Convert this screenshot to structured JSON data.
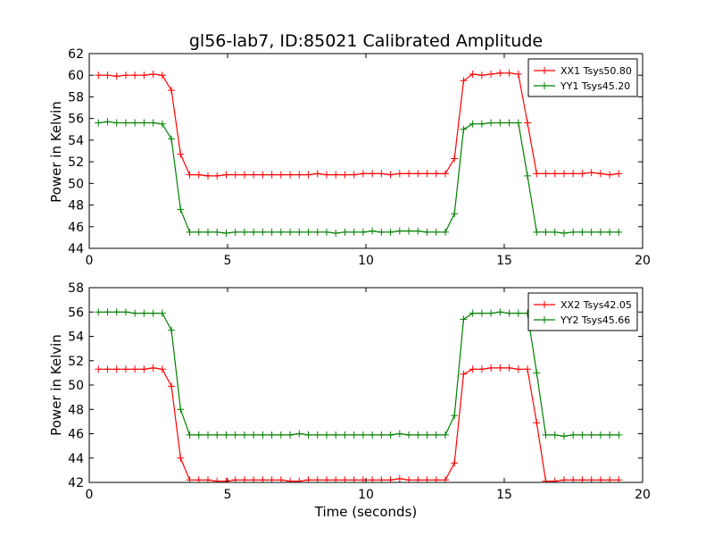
{
  "colors": {
    "background": "#ffffff",
    "xx": "#ff0000",
    "yy": "#008000"
  },
  "chart_data": [
    {
      "type": "line",
      "title": "gl56-lab7, ID:85021 Calibrated Amplitude",
      "xlabel": "",
      "ylabel": "Power in Kelvin",
      "xlim": [
        0,
        20
      ],
      "ylim": [
        44,
        62
      ],
      "xticks": [
        0,
        5,
        10,
        15,
        20
      ],
      "yticks": [
        44,
        46,
        48,
        50,
        52,
        54,
        56,
        58,
        60,
        62
      ],
      "legend": "top-right",
      "series": [
        {
          "name": "XX1 Tsys50.80",
          "color": "#ff0000",
          "x": [
            0.33,
            0.66,
            0.99,
            1.32,
            1.65,
            1.98,
            2.31,
            2.64,
            2.97,
            3.3,
            3.63,
            3.96,
            4.29,
            4.62,
            4.95,
            5.28,
            5.61,
            5.94,
            6.27,
            6.6,
            6.93,
            7.26,
            7.59,
            7.92,
            8.25,
            8.58,
            8.91,
            9.24,
            9.57,
            9.9,
            10.23,
            10.56,
            10.89,
            11.22,
            11.55,
            11.88,
            12.21,
            12.54,
            12.87,
            13.2,
            13.53,
            13.86,
            14.19,
            14.52,
            14.85,
            15.18,
            15.51,
            15.84,
            16.17,
            16.5,
            16.83,
            17.16,
            17.49,
            17.82,
            18.15,
            18.48,
            18.81,
            19.14
          ],
          "y": [
            60.0,
            60.0,
            59.9,
            60.0,
            60.0,
            60.0,
            60.1,
            60.0,
            58.6,
            52.7,
            50.8,
            50.8,
            50.7,
            50.7,
            50.8,
            50.8,
            50.8,
            50.8,
            50.8,
            50.8,
            50.8,
            50.8,
            50.8,
            50.8,
            50.9,
            50.8,
            50.8,
            50.8,
            50.8,
            50.9,
            50.9,
            50.9,
            50.8,
            50.9,
            50.9,
            50.9,
            50.9,
            50.9,
            50.9,
            52.3,
            59.5,
            60.1,
            60.0,
            60.1,
            60.2,
            60.2,
            60.1,
            55.6,
            50.9,
            50.9,
            50.9,
            50.9,
            50.9,
            50.9,
            51.0,
            50.9,
            50.8,
            50.9
          ]
        },
        {
          "name": "YY1 Tsys45.20",
          "color": "#008000",
          "x": [
            0.33,
            0.66,
            0.99,
            1.32,
            1.65,
            1.98,
            2.31,
            2.64,
            2.97,
            3.3,
            3.63,
            3.96,
            4.29,
            4.62,
            4.95,
            5.28,
            5.61,
            5.94,
            6.27,
            6.6,
            6.93,
            7.26,
            7.59,
            7.92,
            8.25,
            8.58,
            8.91,
            9.24,
            9.57,
            9.9,
            10.23,
            10.56,
            10.89,
            11.22,
            11.55,
            11.88,
            12.21,
            12.54,
            12.87,
            13.2,
            13.53,
            13.86,
            14.19,
            14.52,
            14.85,
            15.18,
            15.51,
            15.84,
            16.17,
            16.5,
            16.83,
            17.16,
            17.49,
            17.82,
            18.15,
            18.48,
            18.81,
            19.14
          ],
          "y": [
            55.6,
            55.7,
            55.6,
            55.6,
            55.6,
            55.6,
            55.6,
            55.5,
            54.1,
            47.6,
            45.5,
            45.5,
            45.5,
            45.5,
            45.4,
            45.5,
            45.5,
            45.5,
            45.5,
            45.5,
            45.5,
            45.5,
            45.5,
            45.5,
            45.5,
            45.5,
            45.4,
            45.5,
            45.5,
            45.5,
            45.6,
            45.5,
            45.5,
            45.6,
            45.6,
            45.6,
            45.5,
            45.5,
            45.5,
            47.2,
            55.0,
            55.5,
            55.5,
            55.6,
            55.6,
            55.6,
            55.6,
            50.7,
            45.5,
            45.5,
            45.5,
            45.4,
            45.5,
            45.5,
            45.5,
            45.5,
            45.5,
            45.5
          ]
        }
      ]
    },
    {
      "type": "line",
      "title": "",
      "xlabel": "Time (seconds)",
      "ylabel": "Power in Kelvin",
      "xlim": [
        0,
        20
      ],
      "ylim": [
        42,
        58
      ],
      "xticks": [
        0,
        5,
        10,
        15,
        20
      ],
      "yticks": [
        42,
        44,
        46,
        48,
        50,
        52,
        54,
        56,
        58
      ],
      "legend": "top-right",
      "series": [
        {
          "name": "XX2 Tsys42.05",
          "color": "#ff0000",
          "x": [
            0.33,
            0.66,
            0.99,
            1.32,
            1.65,
            1.98,
            2.31,
            2.64,
            2.97,
            3.3,
            3.63,
            3.96,
            4.29,
            4.62,
            4.95,
            5.28,
            5.61,
            5.94,
            6.27,
            6.6,
            6.93,
            7.26,
            7.59,
            7.92,
            8.25,
            8.58,
            8.91,
            9.24,
            9.57,
            9.9,
            10.23,
            10.56,
            10.89,
            11.22,
            11.55,
            11.88,
            12.21,
            12.54,
            12.87,
            13.2,
            13.53,
            13.86,
            14.19,
            14.52,
            14.85,
            15.18,
            15.51,
            15.84,
            16.17,
            16.5,
            16.83,
            17.16,
            17.49,
            17.82,
            18.15,
            18.48,
            18.81,
            19.14
          ],
          "y": [
            51.3,
            51.3,
            51.3,
            51.3,
            51.3,
            51.3,
            51.4,
            51.3,
            49.9,
            44.0,
            42.2,
            42.2,
            42.2,
            42.1,
            42.1,
            42.2,
            42.2,
            42.2,
            42.2,
            42.2,
            42.2,
            42.1,
            42.1,
            42.2,
            42.2,
            42.2,
            42.2,
            42.2,
            42.2,
            42.2,
            42.2,
            42.2,
            42.2,
            42.3,
            42.2,
            42.2,
            42.2,
            42.2,
            42.2,
            43.6,
            50.9,
            51.3,
            51.3,
            51.4,
            51.4,
            51.4,
            51.3,
            51.3,
            46.9,
            42.1,
            42.1,
            42.2,
            42.2,
            42.2,
            42.2,
            42.2,
            42.2,
            42.2
          ]
        },
        {
          "name": "YY2 Tsys45.66",
          "color": "#008000",
          "x": [
            0.33,
            0.66,
            0.99,
            1.32,
            1.65,
            1.98,
            2.31,
            2.64,
            2.97,
            3.3,
            3.63,
            3.96,
            4.29,
            4.62,
            4.95,
            5.28,
            5.61,
            5.94,
            6.27,
            6.6,
            6.93,
            7.26,
            7.59,
            7.92,
            8.25,
            8.58,
            8.91,
            9.24,
            9.57,
            9.9,
            10.23,
            10.56,
            10.89,
            11.22,
            11.55,
            11.88,
            12.21,
            12.54,
            12.87,
            13.2,
            13.53,
            13.86,
            14.19,
            14.52,
            14.85,
            15.18,
            15.51,
            15.84,
            16.17,
            16.5,
            16.83,
            17.16,
            17.49,
            17.82,
            18.15,
            18.48,
            18.81,
            19.14
          ],
          "y": [
            56.0,
            56.0,
            56.0,
            56.0,
            55.9,
            55.9,
            55.9,
            55.9,
            54.5,
            48.0,
            45.9,
            45.9,
            45.9,
            45.9,
            45.9,
            45.9,
            45.9,
            45.9,
            45.9,
            45.9,
            45.9,
            45.9,
            46.0,
            45.9,
            45.9,
            45.9,
            45.9,
            45.9,
            45.9,
            45.9,
            45.9,
            45.9,
            45.9,
            46.0,
            45.9,
            45.9,
            45.9,
            45.9,
            45.9,
            47.5,
            55.4,
            55.9,
            55.9,
            55.9,
            56.0,
            55.9,
            55.9,
            55.9,
            51.0,
            45.9,
            45.9,
            45.8,
            45.9,
            45.9,
            45.9,
            45.9,
            45.9,
            45.9
          ]
        }
      ]
    }
  ]
}
